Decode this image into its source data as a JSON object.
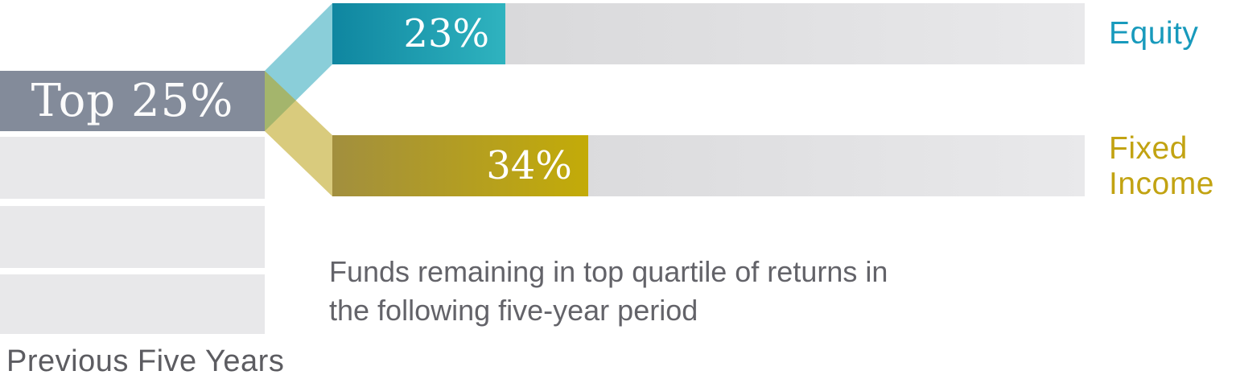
{
  "chart_data": {
    "type": "bar",
    "description": "Persistence of top-quartile fund returns: share of Top 25% funds remaining in the top quartile over the following five-year period",
    "source_segment": {
      "label": "Top 25%",
      "axis_label": "Previous Five Years",
      "quartile_rows_total": 4
    },
    "categories": [
      "Equity",
      "Fixed Income"
    ],
    "series": [
      {
        "name": "Equity",
        "value": 23,
        "value_label": "23%"
      },
      {
        "name": "Fixed Income",
        "name_line1": "Fixed",
        "name_line2": "Income",
        "value": 34,
        "value_label": "34%"
      }
    ],
    "xlim": [
      0,
      100
    ],
    "grid": "off",
    "legend_position": "right",
    "caption_line1": "Funds remaining in top quartile of returns in",
    "caption_line2": "the following five-year period"
  },
  "colors": {
    "top_quartile_bar": "#838b9a",
    "inactive_quartile_bar": "#e8e8ea",
    "equity_gradient": {
      "from": "#0f86a0",
      "to": "#2fb3bf"
    },
    "fixed_income_gradient": {
      "from": "#a28f3e",
      "to": "#c3ab08"
    },
    "track_gradient": {
      "from": "#d4d4d6",
      "to": "#e9e9eb"
    },
    "equity_ribbon": "rgba(42,166,186,0.55)",
    "fixed_income_ribbon": "rgba(186,161,19,0.55)",
    "equity_label_text": "#189abc",
    "fixed_income_label_text": "#c2a312",
    "bar_value_text": "#ffffff",
    "source_label_text": "#fbfbfb",
    "caption_text": "#636369",
    "axis_label_text": "#5c5c61"
  }
}
